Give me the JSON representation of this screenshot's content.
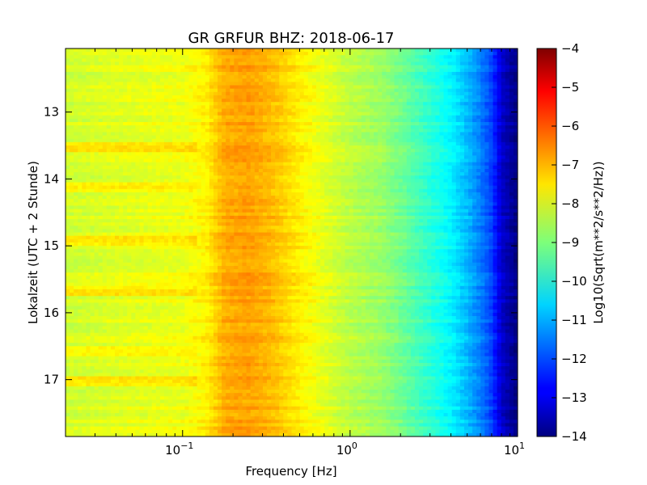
{
  "chart_data": {
    "type": "heatmap",
    "title": "GR GRFUR BHZ: 2018-06-17",
    "xlabel": "Frequency [Hz]",
    "ylabel": "Lokalzeit (UTC + 2 Stunde)",
    "x_scale": "log",
    "xlim": [
      0.02,
      10
    ],
    "ylim": [
      17.85,
      12.05
    ],
    "y_inverted": true,
    "x_ticks": [
      {
        "base": "10",
        "exp": "−1",
        "value": 0.1
      },
      {
        "base": "10",
        "exp": "0",
        "value": 1
      },
      {
        "base": "10",
        "exp": "1",
        "value": 10
      }
    ],
    "y_ticks": [
      "13",
      "14",
      "15",
      "16",
      "17"
    ],
    "colorbar": {
      "label": "Log10(Sqrt(m**2/s**2/Hz))",
      "colormap": "jet",
      "range": [
        -14,
        -4
      ],
      "ticks": [
        "−4",
        "−5",
        "−6",
        "−7",
        "−8",
        "−9",
        "−10",
        "−11",
        "−12",
        "−13",
        "−14"
      ]
    },
    "spectrum_profile": {
      "frequency_hz": [
        0.02,
        0.05,
        0.1,
        0.14,
        0.18,
        0.25,
        0.35,
        0.5,
        0.7,
        1.0,
        1.5,
        2.0,
        3.0,
        4.0,
        5.0,
        6.0,
        7.0,
        8.0,
        10.0
      ],
      "typical_value": [
        -8.2,
        -8.0,
        -7.9,
        -7.6,
        -6.9,
        -6.8,
        -7.1,
        -7.6,
        -8.0,
        -8.4,
        -8.7,
        -9.1,
        -9.8,
        -10.3,
        -10.9,
        -11.5,
        -12.1,
        -13.2,
        -14.0
      ]
    },
    "highlighted_times": [
      {
        "time": 13.5,
        "note": "stronger low-frequency band"
      },
      {
        "time": 14.1,
        "note": "stronger low-frequency band"
      },
      {
        "time": 14.9,
        "note": "stronger low-frequency band"
      },
      {
        "time": 15.65,
        "note": "stronger low-frequency band"
      },
      {
        "time": 16.55,
        "note": "stronger low-frequency band"
      },
      {
        "time": 17.0,
        "note": "stronger low-frequency band"
      }
    ]
  }
}
